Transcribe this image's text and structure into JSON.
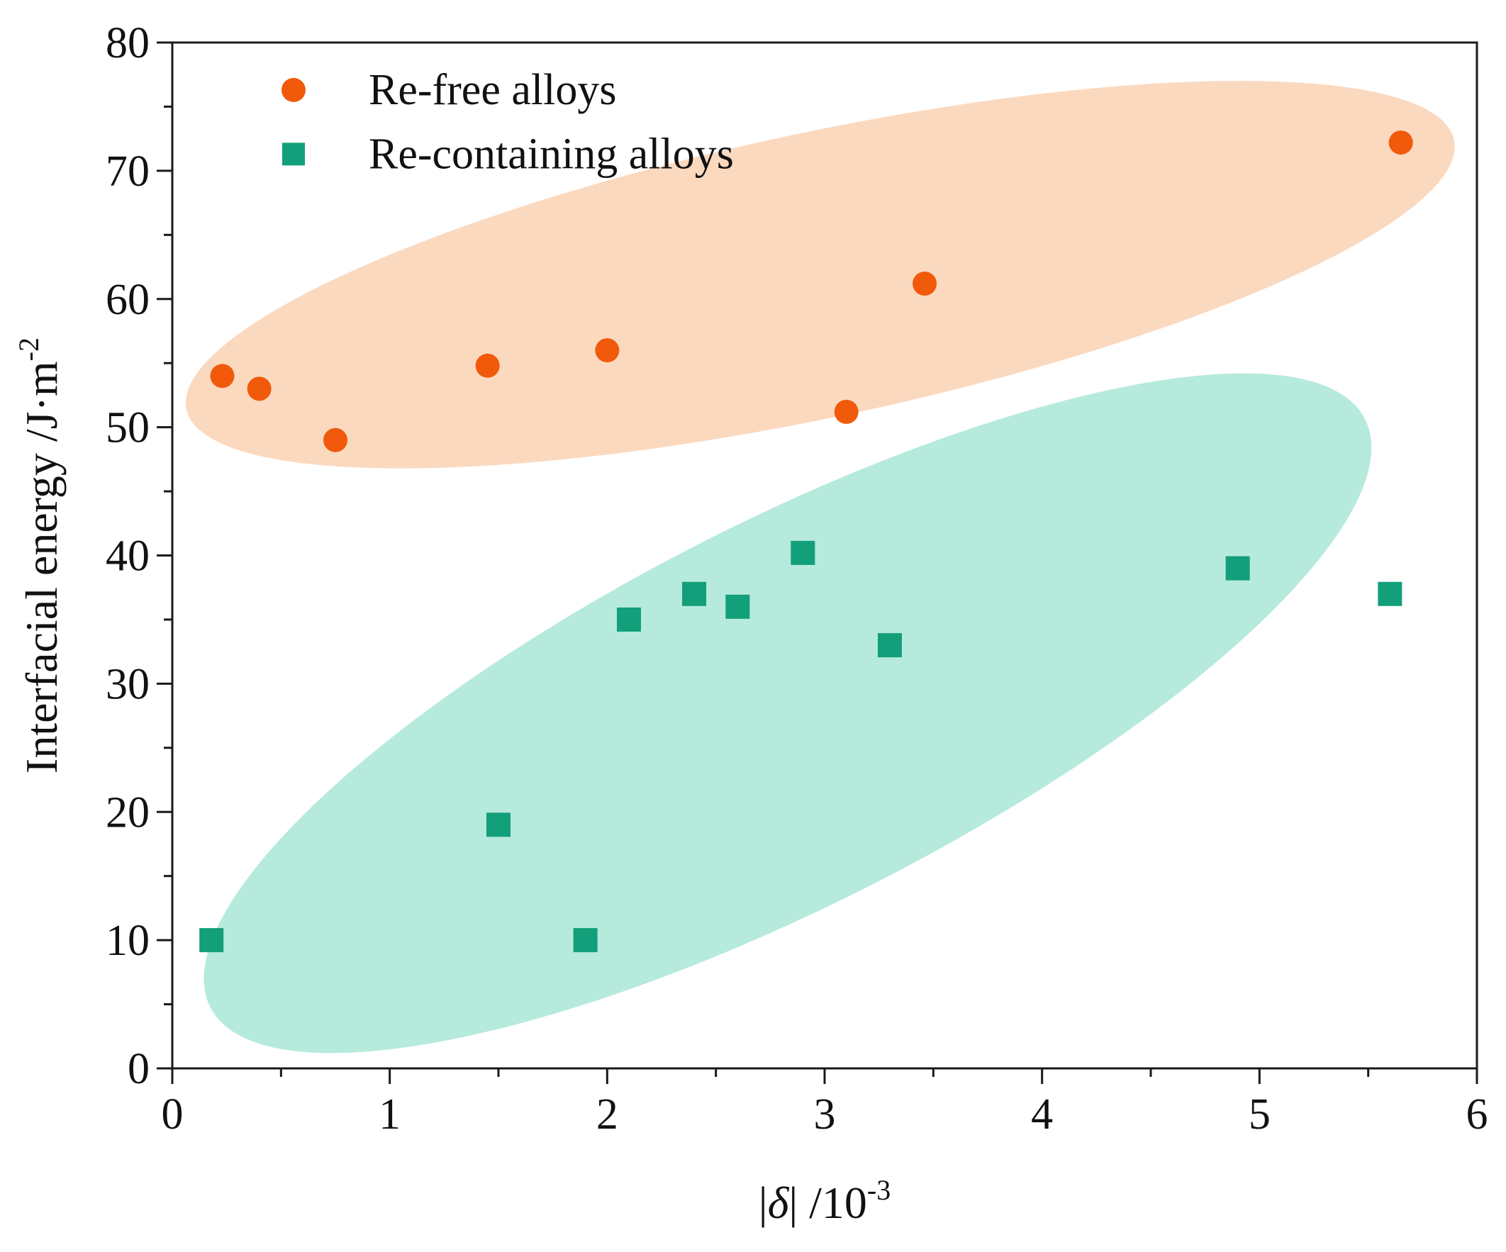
{
  "chart_data": {
    "type": "scatter",
    "title": "",
    "xlabel": {
      "main": "|",
      "italic": "δ",
      "suffix": "| /10",
      "sup": "-3"
    },
    "ylabel": {
      "main": "Interfacial energy /J·m",
      "sup": "-2"
    },
    "xlim": [
      0,
      6
    ],
    "ylim": [
      0,
      80
    ],
    "x_ticks": [
      0,
      1,
      2,
      3,
      4,
      5,
      6
    ],
    "x_tick_labels": [
      "0",
      "1",
      "2",
      "3",
      "4",
      "5",
      "6"
    ],
    "y_ticks": [
      0,
      10,
      20,
      30,
      40,
      50,
      60,
      70,
      80
    ],
    "y_tick_labels": [
      "0",
      "10",
      "20",
      "30",
      "40",
      "50",
      "60",
      "70",
      "80"
    ],
    "legend_position": "top-left",
    "series": [
      {
        "name": "Re-free alloys",
        "marker": "circle",
        "color": "#f05a0a",
        "points": [
          {
            "x": 0.23,
            "y": 54
          },
          {
            "x": 0.4,
            "y": 53
          },
          {
            "x": 0.75,
            "y": 49
          },
          {
            "x": 1.45,
            "y": 54.8
          },
          {
            "x": 2.0,
            "y": 56
          },
          {
            "x": 3.1,
            "y": 51.2
          },
          {
            "x": 3.46,
            "y": 61.2
          },
          {
            "x": 5.65,
            "y": 72.2
          }
        ],
        "region": {
          "color": "#fbd9bf",
          "cx": 2.98,
          "cy": 61.9,
          "rx": 2.98,
          "ry": 11.1,
          "angle": 12
        }
      },
      {
        "name": "Re-containing alloys",
        "marker": "square",
        "color": "#129f79",
        "points": [
          {
            "x": 0.18,
            "y": 10
          },
          {
            "x": 1.5,
            "y": 19
          },
          {
            "x": 1.9,
            "y": 10
          },
          {
            "x": 2.1,
            "y": 35
          },
          {
            "x": 2.4,
            "y": 37
          },
          {
            "x": 2.6,
            "y": 36
          },
          {
            "x": 2.9,
            "y": 40.2
          },
          {
            "x": 3.3,
            "y": 33
          },
          {
            "x": 4.9,
            "y": 39
          },
          {
            "x": 5.6,
            "y": 37
          }
        ],
        "region": {
          "color": "#b6eadc",
          "cx": 2.83,
          "cy": 27.7,
          "rx": 2.98,
          "ry": 14.9,
          "angle": 27
        }
      }
    ]
  }
}
